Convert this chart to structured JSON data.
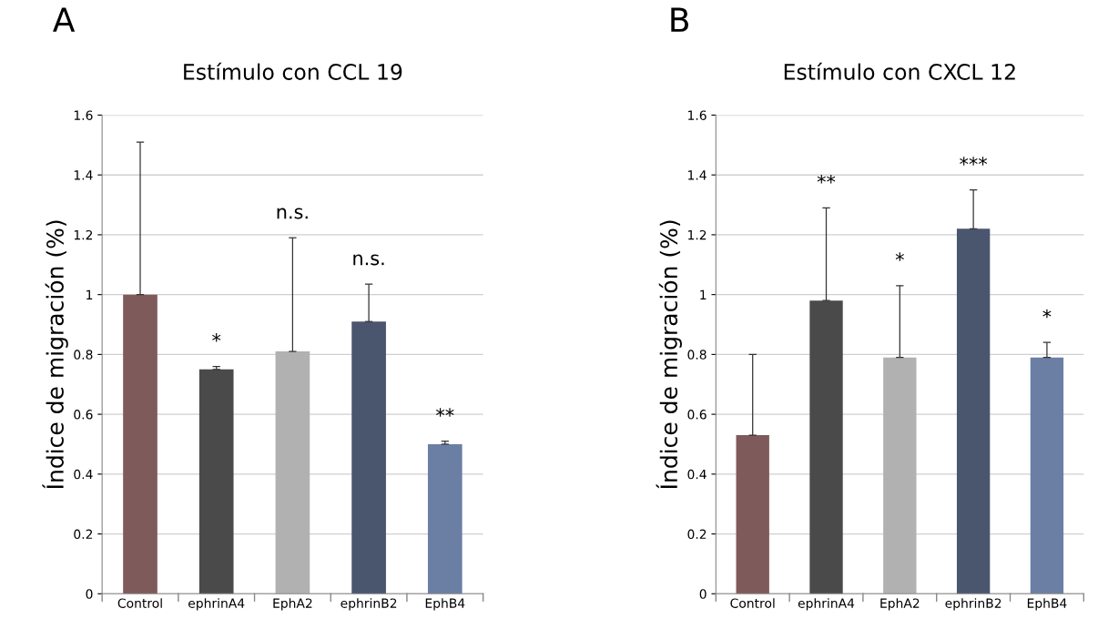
{
  "chart_data": [
    {
      "type": "bar",
      "title": "Estímulo con CCL 19",
      "ylabel": "Índice de migración (%)",
      "categories": [
        "Control",
        "ephrinA4",
        "EphA2",
        "ephrinB2",
        "EphB4"
      ],
      "values": [
        1.0,
        0.75,
        0.81,
        0.91,
        0.5
      ],
      "colors": [
        "#7f5a5a",
        "#4a4a4a",
        "#b1b1b1",
        "#4a556e",
        "#6b7fa5"
      ],
      "errors": [
        [
          1.0,
          1.51
        ],
        [
          0.75,
          0.76
        ],
        [
          0.81,
          1.19
        ],
        [
          0.91,
          1.035
        ],
        [
          0.5,
          0.51
        ]
      ],
      "ylim": [
        0,
        1.6
      ],
      "yticks": [
        0,
        0.2,
        0.4,
        0.6,
        0.8,
        1,
        1.2,
        1.4,
        1.6
      ],
      "grid": "y",
      "annotations": [
        "A",
        null,
        "*",
        "n.s.",
        "n.s.",
        "**"
      ]
    },
    {
      "type": "bar",
      "title": "Estímulo con CXCL 12",
      "ylabel": "Índice de migración (%)",
      "categories": [
        "Control",
        "ephrinA4",
        "EphA2",
        "ephrinB2",
        "EphB4"
      ],
      "values": [
        0.53,
        0.98,
        0.79,
        1.22,
        0.79
      ],
      "colors": [
        "#7f5a5a",
        "#4a4a4a",
        "#b1b1b1",
        "#4a556e",
        "#6b7fa5"
      ],
      "errors": [
        [
          0.53,
          0.8
        ],
        [
          0.98,
          1.29
        ],
        [
          0.79,
          1.03
        ],
        [
          1.22,
          1.35
        ],
        [
          0.79,
          0.84
        ]
      ],
      "ylim": [
        0,
        1.6
      ],
      "yticks": [
        0,
        0.2,
        0.4,
        0.6,
        0.8,
        1,
        1.2,
        1.4,
        1.6
      ],
      "grid": "y",
      "annotations": [
        "B",
        null,
        "**",
        "*",
        "***",
        "*"
      ]
    }
  ]
}
